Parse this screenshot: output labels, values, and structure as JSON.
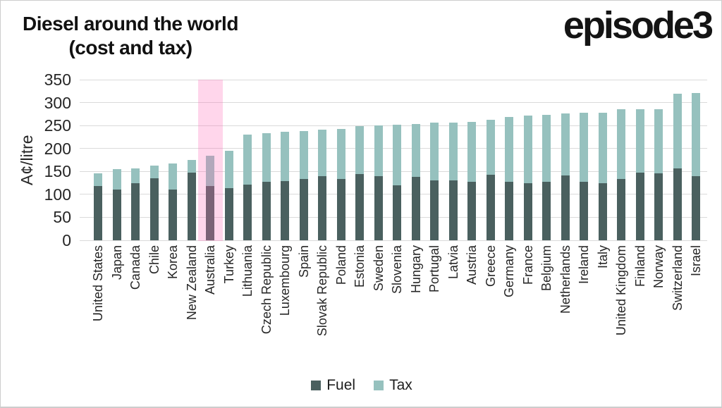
{
  "header": {
    "title_line1": "Diesel around the world",
    "title_line2": "(cost and tax)",
    "logo": "episode3"
  },
  "chart_data": {
    "type": "bar",
    "stacked": true,
    "title": "Diesel around the world (cost and tax)",
    "ylabel": "A¢/litre",
    "ylim": [
      0,
      350
    ],
    "yticks": [
      350,
      300,
      250,
      200,
      150,
      100,
      50,
      0
    ],
    "grid": true,
    "legend_position": "bottom",
    "highlighted_category": "Australia",
    "highlight_band_color": "rgba(255,105,180,0.27)",
    "categories": [
      "United States",
      "Japan",
      "Canada",
      "Chile",
      "Korea",
      "New Zealand",
      "Australia",
      "Turkey",
      "Lithuania",
      "Czech Republic",
      "Luxembourg",
      "Spain",
      "Slovak Republic",
      "Poland",
      "Estonia",
      "Sweden",
      "Slovenia",
      "Hungary",
      "Portugal",
      "Latvia",
      "Austria",
      "Greece",
      "Germany",
      "France",
      "Belgium",
      "Netherlands",
      "Ireland",
      "Italy",
      "United Kingdom",
      "Finland",
      "Norway",
      "Switzerland",
      "Israel"
    ],
    "series": [
      {
        "name": "Fuel",
        "color": "#4A605F",
        "values": [
          118,
          110,
          124,
          135,
          110,
          148,
          118,
          114,
          121,
          127,
          129,
          133,
          140,
          133,
          145,
          140,
          119,
          138,
          130,
          131,
          128,
          143,
          128,
          124,
          127,
          141,
          127,
          124,
          134,
          147,
          146,
          157,
          140
        ]
      },
      {
        "name": "Tax",
        "color": "#96C1BE",
        "values": [
          28,
          45,
          32,
          27,
          57,
          27,
          67,
          81,
          109,
          106,
          107,
          105,
          101,
          110,
          103,
          110,
          133,
          116,
          126,
          126,
          130,
          119,
          140,
          148,
          147,
          135,
          151,
          154,
          151,
          138,
          139,
          162,
          181
        ]
      }
    ],
    "totals": [
      146,
      155,
      156,
      162,
      167,
      175,
      185,
      195,
      230,
      233,
      236,
      238,
      241,
      243,
      248,
      250,
      252,
      254,
      256,
      257,
      258,
      262,
      268,
      272,
      274,
      276,
      278,
      278,
      285,
      285,
      285,
      319,
      321
    ]
  },
  "legend": {
    "items": [
      {
        "label": "Fuel",
        "color": "#4A605F"
      },
      {
        "label": "Tax",
        "color": "#96C1BE"
      }
    ]
  }
}
